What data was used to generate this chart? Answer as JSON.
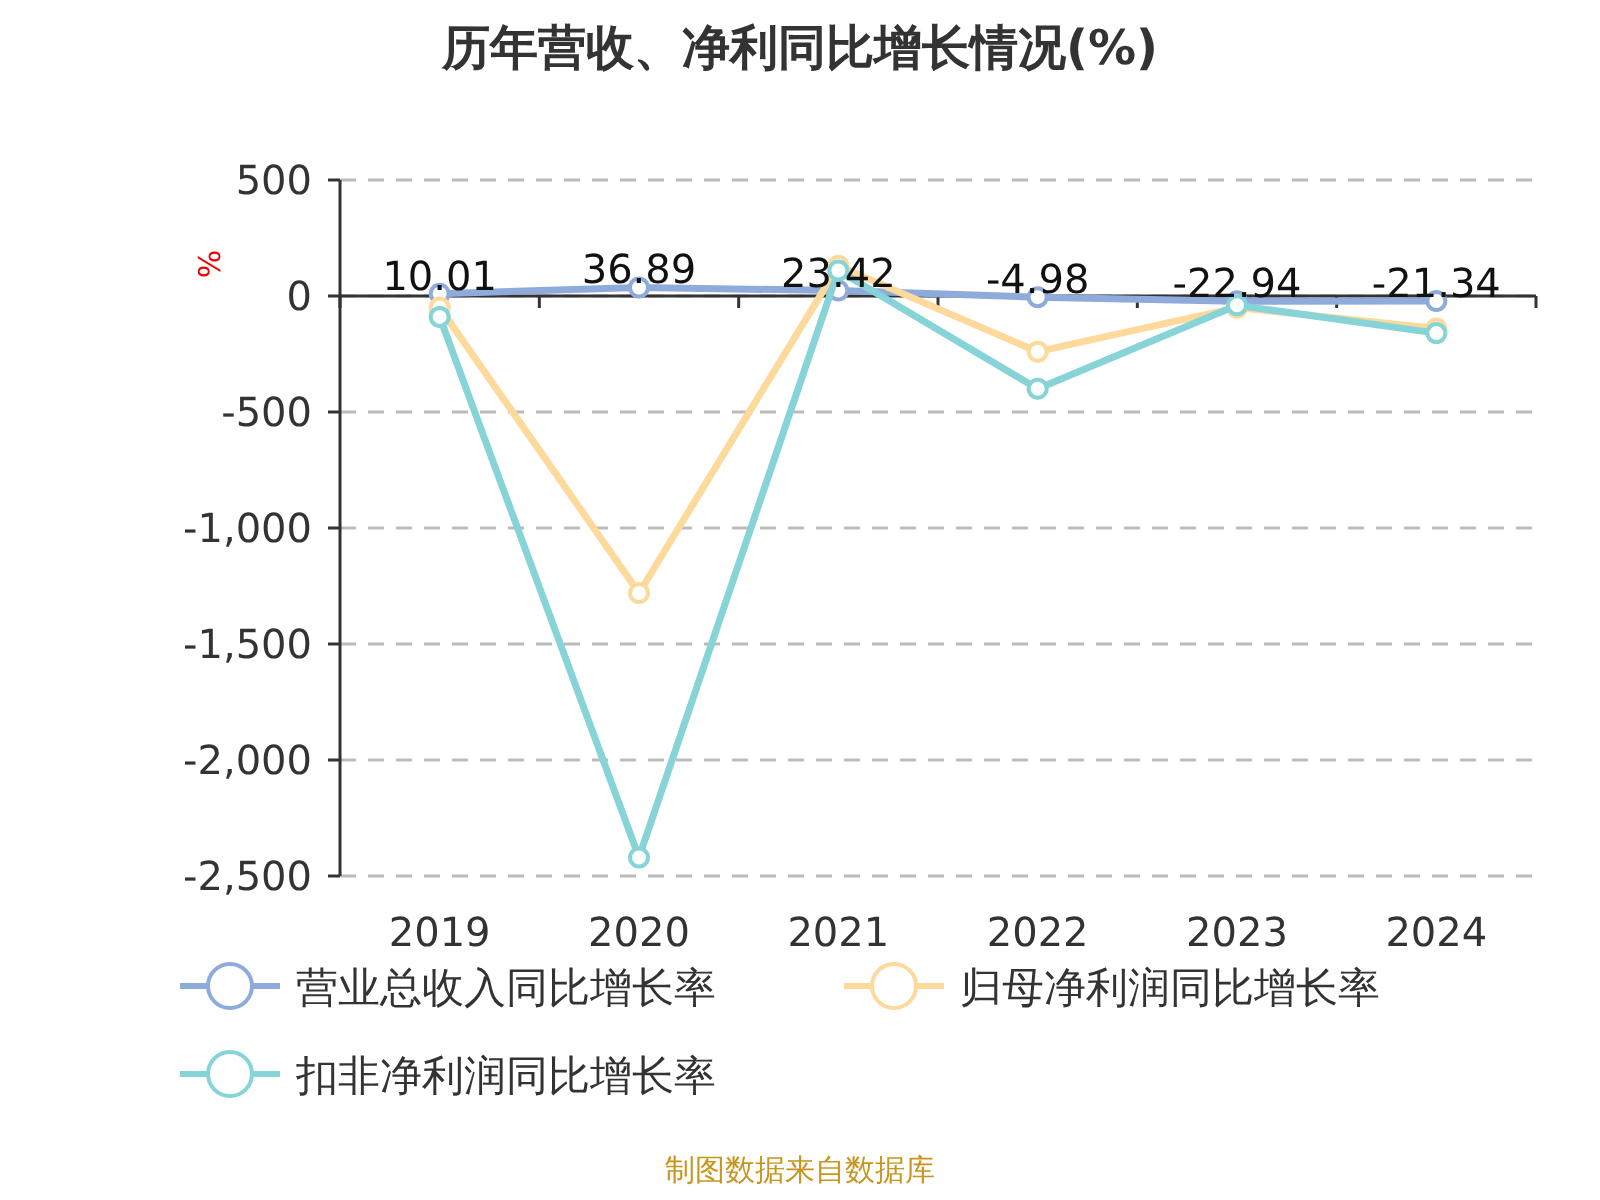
{
  "chart_data": {
    "type": "line",
    "title": "历年营收、净利同比增长情况(%)",
    "ylabel": "%",
    "categories": [
      "2019",
      "2020",
      "2021",
      "2022",
      "2023",
      "2024"
    ],
    "series": [
      {
        "name": "营业总收入同比增长率",
        "color": "#8fabdc",
        "values": [
          10.01,
          36.89,
          23.42,
          -4.98,
          -22.94,
          -21.34
        ],
        "value_labels": [
          "10.01",
          "36.89",
          "23.42",
          "-4.98",
          "-22.94",
          "-21.34"
        ]
      },
      {
        "name": "归母净利润同比增长率",
        "color": "#fdd99b",
        "values": [
          -50,
          -1280,
          130,
          -240,
          -50,
          -140
        ]
      },
      {
        "name": "扣非净利润同比增长率",
        "color": "#86d4d8",
        "values": [
          -90,
          -2420,
          110,
          -400,
          -40,
          -160
        ]
      }
    ],
    "ylim": [
      -2500,
      500
    ],
    "yticks": [
      500,
      0,
      -500,
      {
        "value": -1000,
        "label": "-1,000"
      },
      {
        "value": -1500,
        "label": "-1,500"
      },
      {
        "value": -2000,
        "label": "-2,000"
      },
      {
        "value": -2500,
        "label": "-2,500"
      }
    ],
    "grid": "y",
    "legend": "bottom",
    "marker": "circle",
    "annotations": [
      "制图数据来自数据库"
    ]
  }
}
